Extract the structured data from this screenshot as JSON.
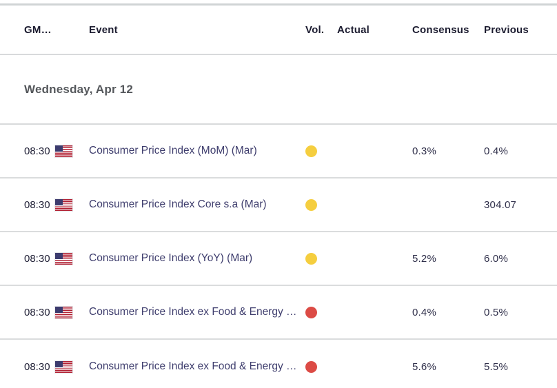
{
  "table": {
    "columns": {
      "time": "GM…",
      "event": "Event",
      "vol": "Vol.",
      "actual": "Actual",
      "consensus": "Consensus",
      "previous": "Previous"
    },
    "day_header": "Wednesday, Apr 12",
    "rows": [
      {
        "time": "08:30",
        "country": "US",
        "event": "Consumer Price Index (MoM) (Mar)",
        "vol": "yellow",
        "actual": "",
        "consensus": "0.3%",
        "previous": "0.4%"
      },
      {
        "time": "08:30",
        "country": "US",
        "event": "Consumer Price Index Core s.a (Mar)",
        "vol": "yellow",
        "actual": "",
        "consensus": "",
        "previous": "304.07"
      },
      {
        "time": "08:30",
        "country": "US",
        "event": "Consumer Price Index (YoY) (Mar)",
        "vol": "yellow",
        "actual": "",
        "consensus": "5.2%",
        "previous": "6.0%"
      },
      {
        "time": "08:30",
        "country": "US",
        "event": "Consumer Price Index ex Food & Energy …",
        "vol": "red",
        "actual": "",
        "consensus": "0.4%",
        "previous": "0.5%"
      },
      {
        "time": "08:30",
        "country": "US",
        "event": "Consumer Price Index ex Food & Energy …",
        "vol": "red",
        "actual": "",
        "consensus": "5.6%",
        "previous": "5.5%"
      }
    ]
  },
  "colors": {
    "volatility_yellow": "#F5CE3F",
    "volatility_red": "#DC4B45",
    "header_text": "#1C1C30",
    "day_text": "#55585C",
    "event_link_text": "#3E3D6D",
    "value_text": "#2F2F4A",
    "divider": "#D8DADB",
    "flag_blue": "#3C3B6E",
    "flag_red": "#B22234"
  }
}
